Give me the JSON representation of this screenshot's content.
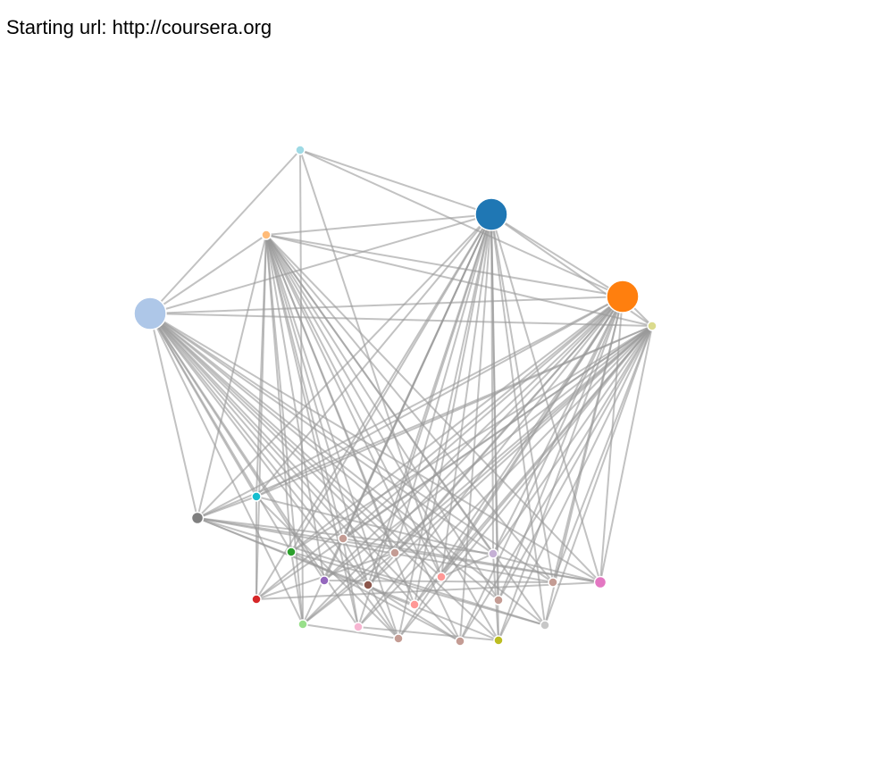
{
  "header": {
    "label": "Starting url: http://coursera.org"
  },
  "graph": {
    "nodes": [
      {
        "id": "n0",
        "color": "#1f77b4",
        "size": "large"
      },
      {
        "id": "n1",
        "color": "#ff7f0e",
        "size": "large"
      },
      {
        "id": "n2",
        "color": "#aec7e8",
        "size": "large"
      },
      {
        "id": "n3",
        "color": "#9edae5",
        "size": "small"
      },
      {
        "id": "n4",
        "color": "#ffbb78",
        "size": "small"
      },
      {
        "id": "n5",
        "color": "#dbdb8d",
        "size": "small"
      },
      {
        "id": "n6",
        "color": "#17becf",
        "size": "small"
      },
      {
        "id": "n7",
        "color": "#7f7f7f",
        "size": "medium"
      },
      {
        "id": "n8",
        "color": "#2ca02c",
        "size": "small"
      },
      {
        "id": "n9",
        "color": "#c49c94",
        "size": "small"
      },
      {
        "id": "n10",
        "color": "#c49c94",
        "size": "small"
      },
      {
        "id": "n11",
        "color": "#c5b0d5",
        "size": "small"
      },
      {
        "id": "n12",
        "color": "#9467bd",
        "size": "small"
      },
      {
        "id": "n13",
        "color": "#8c564b",
        "size": "small"
      },
      {
        "id": "n14",
        "color": "#ff9896",
        "size": "small"
      },
      {
        "id": "n15",
        "color": "#d62728",
        "size": "small"
      },
      {
        "id": "n16",
        "color": "#ff9896",
        "size": "small"
      },
      {
        "id": "n17",
        "color": "#c49c94",
        "size": "small"
      },
      {
        "id": "n18",
        "color": "#c49c94",
        "size": "small"
      },
      {
        "id": "n19",
        "color": "#e377c2",
        "size": "medium"
      },
      {
        "id": "n20",
        "color": "#98df8a",
        "size": "small"
      },
      {
        "id": "n21",
        "color": "#f7b6d2",
        "size": "small"
      },
      {
        "id": "n22",
        "color": "#c49c94",
        "size": "small"
      },
      {
        "id": "n23",
        "color": "#c49c94",
        "size": "small"
      },
      {
        "id": "n24",
        "color": "#bcbd22",
        "size": "small"
      },
      {
        "id": "n25",
        "color": "#c7c7c7",
        "size": "small"
      }
    ],
    "links": [
      [
        "n3",
        "n0"
      ],
      [
        "n3",
        "n1"
      ],
      [
        "n3",
        "n2"
      ],
      [
        "n3",
        "n20"
      ],
      [
        "n3",
        "n14"
      ],
      [
        "n4",
        "n0"
      ],
      [
        "n4",
        "n1"
      ],
      [
        "n4",
        "n5"
      ],
      [
        "n4",
        "n2"
      ],
      [
        "n4",
        "n7"
      ],
      [
        "n4",
        "n6"
      ],
      [
        "n4",
        "n8"
      ],
      [
        "n4",
        "n9"
      ],
      [
        "n4",
        "n10"
      ],
      [
        "n4",
        "n11"
      ],
      [
        "n4",
        "n12"
      ],
      [
        "n4",
        "n13"
      ],
      [
        "n4",
        "n14"
      ],
      [
        "n4",
        "n16"
      ],
      [
        "n4",
        "n17"
      ],
      [
        "n4",
        "n18"
      ],
      [
        "n4",
        "n19"
      ],
      [
        "n4",
        "n15"
      ],
      [
        "n4",
        "n20"
      ],
      [
        "n4",
        "n21"
      ],
      [
        "n4",
        "n22"
      ],
      [
        "n4",
        "n23"
      ],
      [
        "n4",
        "n24"
      ],
      [
        "n4",
        "n25"
      ],
      [
        "n2",
        "n0"
      ],
      [
        "n2",
        "n1"
      ],
      [
        "n2",
        "n5"
      ],
      [
        "n2",
        "n7"
      ],
      [
        "n2",
        "n6"
      ],
      [
        "n2",
        "n8"
      ],
      [
        "n2",
        "n9"
      ],
      [
        "n2",
        "n10"
      ],
      [
        "n2",
        "n11"
      ],
      [
        "n2",
        "n12"
      ],
      [
        "n2",
        "n13"
      ],
      [
        "n2",
        "n14"
      ],
      [
        "n2",
        "n16"
      ],
      [
        "n2",
        "n17"
      ],
      [
        "n2",
        "n18"
      ],
      [
        "n2",
        "n19"
      ],
      [
        "n2",
        "n20"
      ],
      [
        "n2",
        "n21"
      ],
      [
        "n2",
        "n22"
      ],
      [
        "n2",
        "n23"
      ],
      [
        "n2",
        "n24"
      ],
      [
        "n2",
        "n25"
      ],
      [
        "n0",
        "n1"
      ],
      [
        "n0",
        "n5"
      ],
      [
        "n0",
        "n7"
      ],
      [
        "n0",
        "n6"
      ],
      [
        "n0",
        "n8"
      ],
      [
        "n0",
        "n9"
      ],
      [
        "n0",
        "n10"
      ],
      [
        "n0",
        "n11"
      ],
      [
        "n0",
        "n12"
      ],
      [
        "n0",
        "n13"
      ],
      [
        "n0",
        "n14"
      ],
      [
        "n0",
        "n16"
      ],
      [
        "n0",
        "n17"
      ],
      [
        "n0",
        "n18"
      ],
      [
        "n0",
        "n19"
      ],
      [
        "n0",
        "n15"
      ],
      [
        "n0",
        "n20"
      ],
      [
        "n0",
        "n21"
      ],
      [
        "n0",
        "n22"
      ],
      [
        "n0",
        "n23"
      ],
      [
        "n0",
        "n24"
      ],
      [
        "n0",
        "n25"
      ],
      [
        "n1",
        "n5"
      ],
      [
        "n1",
        "n7"
      ],
      [
        "n1",
        "n6"
      ],
      [
        "n1",
        "n8"
      ],
      [
        "n1",
        "n9"
      ],
      [
        "n1",
        "n10"
      ],
      [
        "n1",
        "n11"
      ],
      [
        "n1",
        "n12"
      ],
      [
        "n1",
        "n13"
      ],
      [
        "n1",
        "n14"
      ],
      [
        "n1",
        "n16"
      ],
      [
        "n1",
        "n17"
      ],
      [
        "n1",
        "n18"
      ],
      [
        "n1",
        "n19"
      ],
      [
        "n1",
        "n15"
      ],
      [
        "n1",
        "n20"
      ],
      [
        "n1",
        "n21"
      ],
      [
        "n1",
        "n22"
      ],
      [
        "n1",
        "n23"
      ],
      [
        "n1",
        "n24"
      ],
      [
        "n1",
        "n25"
      ],
      [
        "n5",
        "n7"
      ],
      [
        "n5",
        "n6"
      ],
      [
        "n5",
        "n8"
      ],
      [
        "n5",
        "n9"
      ],
      [
        "n5",
        "n10"
      ],
      [
        "n5",
        "n11"
      ],
      [
        "n5",
        "n12"
      ],
      [
        "n5",
        "n13"
      ],
      [
        "n5",
        "n14"
      ],
      [
        "n5",
        "n16"
      ],
      [
        "n5",
        "n17"
      ],
      [
        "n5",
        "n18"
      ],
      [
        "n5",
        "n19"
      ],
      [
        "n5",
        "n15"
      ],
      [
        "n5",
        "n20"
      ],
      [
        "n5",
        "n21"
      ],
      [
        "n5",
        "n22"
      ],
      [
        "n5",
        "n23"
      ],
      [
        "n5",
        "n24"
      ],
      [
        "n5",
        "n25"
      ],
      [
        "n7",
        "n19"
      ],
      [
        "n7",
        "n18"
      ],
      [
        "n7",
        "n25"
      ],
      [
        "n7",
        "n11"
      ],
      [
        "n7",
        "n16"
      ],
      [
        "n7",
        "n24"
      ],
      [
        "n7",
        "n6"
      ],
      [
        "n6",
        "n15"
      ],
      [
        "n6",
        "n19"
      ],
      [
        "n6",
        "n22"
      ],
      [
        "n8",
        "n20"
      ],
      [
        "n8",
        "n23"
      ],
      [
        "n8",
        "n25"
      ],
      [
        "n9",
        "n19"
      ],
      [
        "n9",
        "n21"
      ],
      [
        "n9",
        "n22"
      ],
      [
        "n10",
        "n15"
      ],
      [
        "n10",
        "n20"
      ],
      [
        "n11",
        "n24"
      ],
      [
        "n11",
        "n14"
      ],
      [
        "n12",
        "n18"
      ],
      [
        "n13",
        "n23"
      ],
      [
        "n15",
        "n19"
      ],
      [
        "n20",
        "n22"
      ],
      [
        "n21",
        "n24"
      ]
    ]
  }
}
